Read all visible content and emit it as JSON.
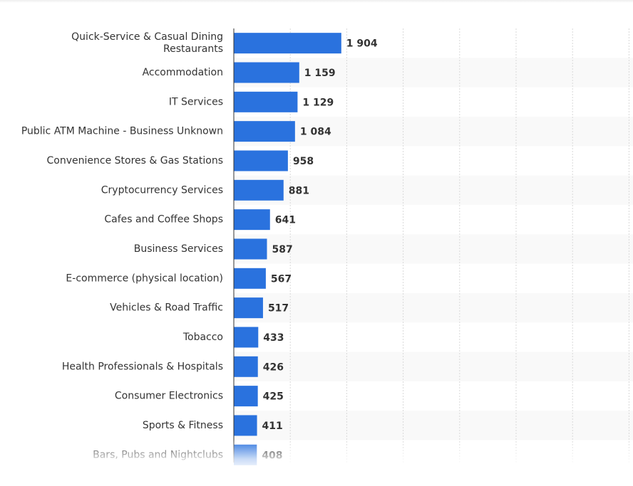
{
  "chart_data": {
    "type": "bar",
    "orientation": "horizontal",
    "title": "",
    "xlabel": "",
    "ylabel": "",
    "xlim": [
      0,
      7000
    ],
    "grid": true,
    "legend": "none",
    "bar_color": "#2a72de",
    "band_color": "#f9f9f9",
    "grid_color": "#d9d9d9",
    "categories": [
      [
        "Quick-Service & Casual Dining",
        "Restaurants"
      ],
      [
        "Accommodation"
      ],
      [
        "IT Services"
      ],
      [
        "Public ATM Machine - Business Unknown"
      ],
      [
        "Convenience Stores & Gas Stations"
      ],
      [
        "Cryptocurrency Services"
      ],
      [
        "Cafes and Coffee Shops"
      ],
      [
        "Business Services"
      ],
      [
        "E-commerce (physical location)"
      ],
      [
        "Vehicles & Road Traffic"
      ],
      [
        "Tobacco"
      ],
      [
        "Health Professionals & Hospitals"
      ],
      [
        "Consumer Electronics"
      ],
      [
        "Sports & Fitness"
      ],
      [
        "Bars, Pubs and Nightclubs"
      ]
    ],
    "values": [
      1904,
      1159,
      1129,
      1084,
      958,
      881,
      641,
      587,
      567,
      517,
      433,
      426,
      425,
      411,
      408
    ],
    "value_labels": [
      "1 904",
      "1 159",
      "1 129",
      "1 084",
      "958",
      "881",
      "641",
      "587",
      "567",
      "517",
      "433",
      "426",
      "425",
      "411",
      "408"
    ]
  }
}
